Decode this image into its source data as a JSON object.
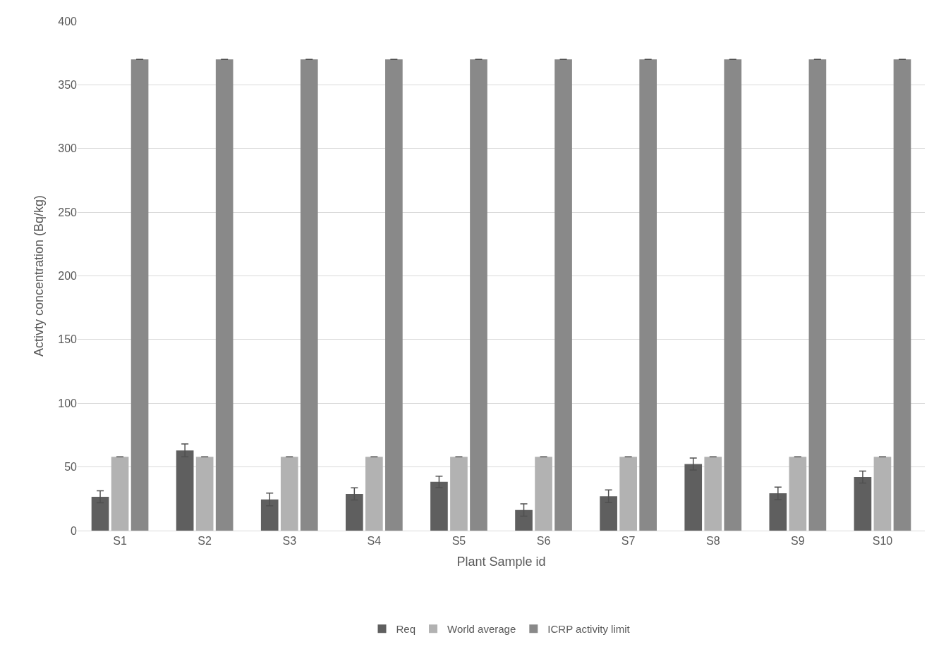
{
  "chart_data": {
    "type": "bar",
    "xlabel": "Plant Sample id",
    "ylabel": "Activty concentration (Bq/kg)",
    "categories": [
      "S1",
      "S2",
      "S3",
      "S4",
      "S5",
      "S6",
      "S7",
      "S8",
      "S9",
      "S10"
    ],
    "series": [
      {
        "name": "Req",
        "color": "#5f5f5f",
        "values": [
          26.6,
          63,
          24.5,
          28.8,
          38.3,
          16.2,
          27,
          52.3,
          29.3,
          42.1
        ],
        "errors": [
          4.7,
          5,
          5,
          4.8,
          4.5,
          4.8,
          5,
          4.7,
          4.9,
          4.7
        ]
      },
      {
        "name": "World average",
        "color": "#b2b2b2",
        "values": [
          58,
          58,
          58,
          58,
          58,
          58,
          58,
          58,
          58,
          58
        ],
        "errors": [
          0,
          0,
          0,
          0,
          0,
          0,
          0,
          0,
          0,
          0
        ]
      },
      {
        "name": "ICRP activity limit",
        "color": "#898989",
        "values": [
          370,
          370,
          370,
          370,
          370,
          370,
          370,
          370,
          370,
          370
        ],
        "errors": [
          0,
          0,
          0,
          0,
          0,
          0,
          0,
          0,
          0,
          0
        ]
      }
    ],
    "ylim": [
      0,
      400
    ],
    "yticks": [
      0,
      50,
      100,
      150,
      200,
      250,
      300,
      350,
      400
    ],
    "grid": "y",
    "legend": "bottom"
  }
}
